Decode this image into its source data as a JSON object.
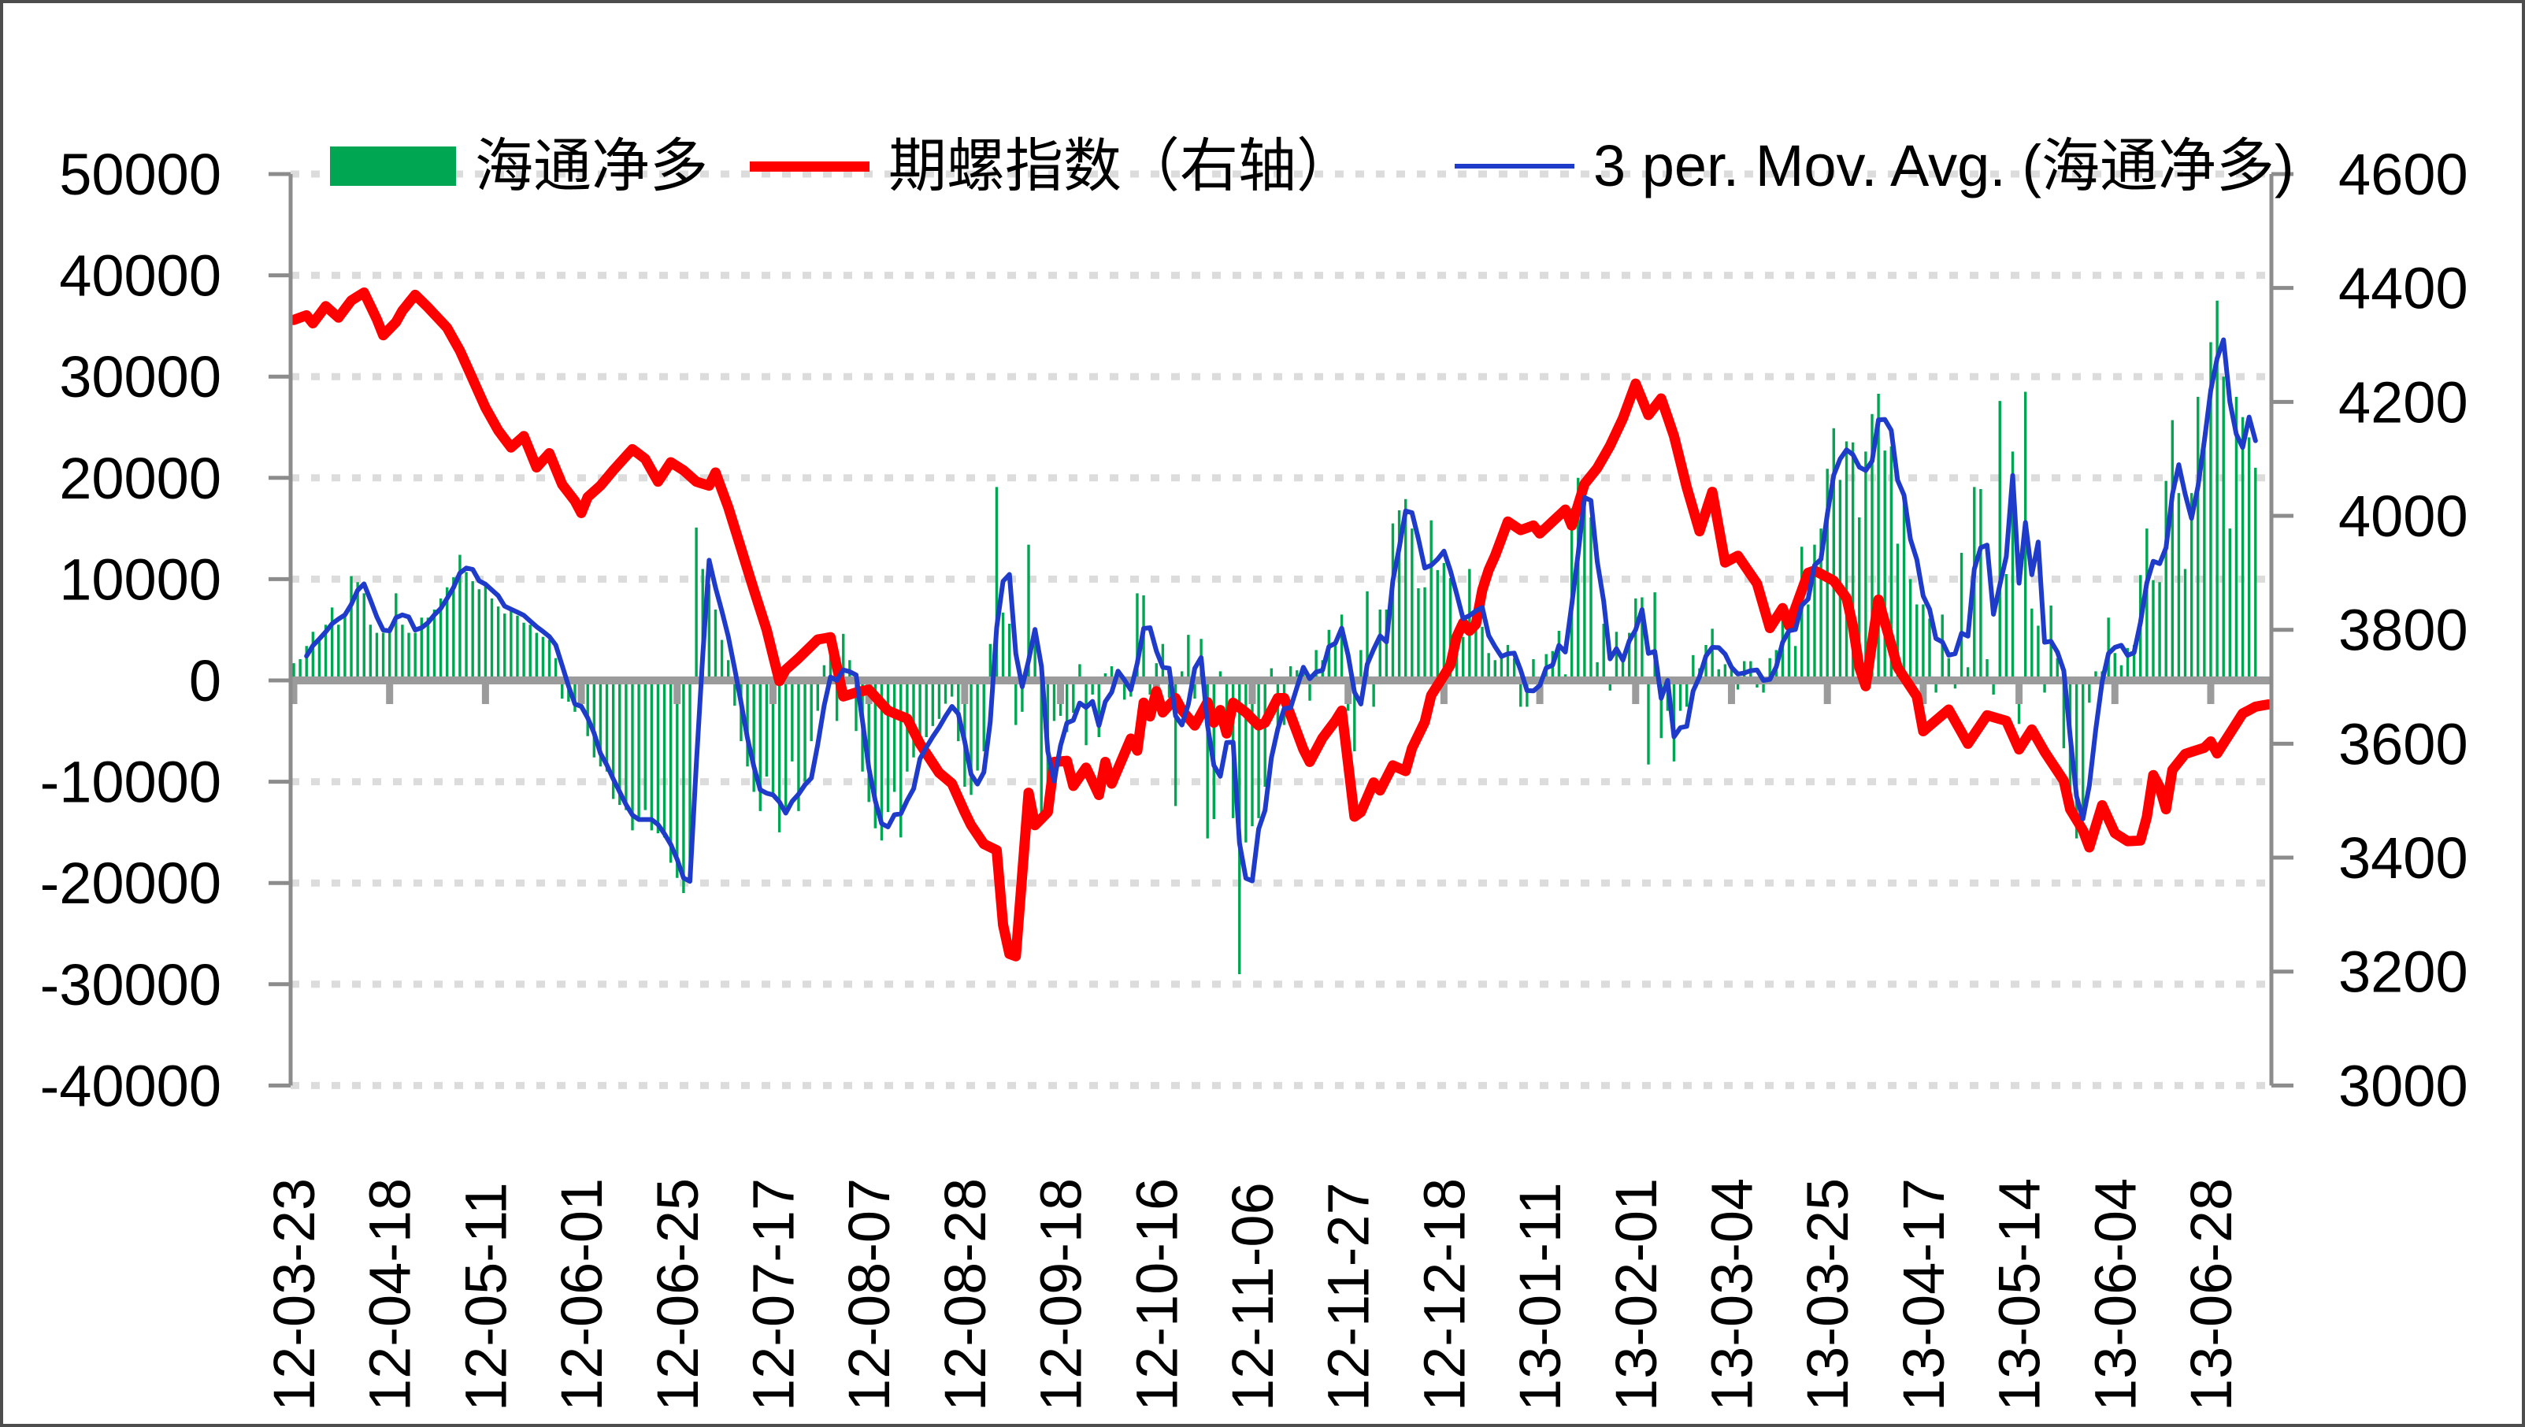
{
  "legend": [
    {
      "id": "bar",
      "label": "海通净多",
      "color": "#00A651",
      "swatch": "rect"
    },
    {
      "id": "red",
      "label": "期螺指数（右轴）",
      "color": "#FF0000",
      "swatch": "thick-line"
    },
    {
      "id": "ma",
      "label": "3 per. Mov. Avg. (海通净多)",
      "color": "#1F3BC9",
      "swatch": "thin-line"
    }
  ],
  "colors": {
    "bar": "#00A651",
    "red_line": "#FF0000",
    "ma_line": "#1F3BC9",
    "axis": "#8C8C8C",
    "zero_line": "#9B9B9B",
    "gridline": "#DCDCDC",
    "text": "#000000",
    "border": "#4D4D4D"
  },
  "chart_data": {
    "type": "combo",
    "title": "",
    "grid": "horizontal-dotted",
    "legend_position": "top",
    "left_axis": {
      "min": -40000,
      "max": 50000,
      "tick_step": 10000,
      "tick_labels": [
        "50000",
        "40000",
        "30000",
        "20000",
        "10000",
        "0",
        "-10000",
        "-20000",
        "-30000",
        "-40000"
      ]
    },
    "right_axis": {
      "min": 3000,
      "max": 4600,
      "tick_step": 200,
      "tick_labels": [
        "4600",
        "4400",
        "4200",
        "4000",
        "3800",
        "3600",
        "3400",
        "3200",
        "3000"
      ]
    },
    "x_tick_labels": [
      "12-03-23",
      "12-04-18",
      "12-05-11",
      "12-06-01",
      "12-06-25",
      "12-07-17",
      "12-08-07",
      "12-08-28",
      "12-09-18",
      "12-10-16",
      "12-11-06",
      "12-11-27",
      "12-12-18",
      "13-01-11",
      "13-02-01",
      "13-03-04",
      "13-03-25",
      "13-04-17",
      "13-05-14",
      "13-06-04",
      "13-06-28"
    ],
    "x_label_every": 15,
    "n_points": 310,
    "series": [
      {
        "name": "海通净多",
        "type": "bar",
        "axis": "left",
        "color": "#00A651",
        "values": [
          1700,
          2100,
          3400,
          4800,
          4100,
          5500,
          7200,
          5500,
          6700,
          10300,
          9700,
          8600,
          5500,
          4700,
          4700,
          5300,
          8600,
          5500,
          4700,
          4700,
          6200,
          6200,
          7000,
          8100,
          9200,
          10200,
          12400,
          10700,
          9800,
          9000,
          9700,
          8100,
          7300,
          6600,
          7200,
          6400,
          5700,
          5500,
          4700,
          4300,
          4000,
          2200,
          -1800,
          -2100,
          -3100,
          -2500,
          -5500,
          -7600,
          -8500,
          -9000,
          -11700,
          -12300,
          -12800,
          -14800,
          -13600,
          -12800,
          -14800,
          -15100,
          -15500,
          -18000,
          -19500,
          -21000,
          -19000,
          15100,
          11000,
          9500,
          7000,
          4000,
          2000,
          -2500,
          -6000,
          -8500,
          -11000,
          -12900,
          -9500,
          -11500,
          -15000,
          -12800,
          -8000,
          -12900,
          -10000,
          -6000,
          -3000,
          1500,
          2500,
          -4000,
          4600,
          2000,
          -5000,
          -9000,
          -12000,
          -14600,
          -15800,
          -13000,
          -11000,
          -15500,
          -9000,
          -7600,
          -6600,
          -5600,
          -4500,
          -3800,
          -2300,
          -1600,
          -6000,
          -10500,
          -11300,
          -8900,
          -7000,
          3600,
          19100,
          6700,
          5600,
          -4400,
          -3100,
          13400,
          4800,
          -14000,
          -11800,
          -4000,
          -3500,
          -5100,
          -3200,
          1600,
          -6400,
          -1400,
          -5600,
          700,
          1400,
          650,
          -1900,
          -1600,
          8600,
          8400,
          -1400,
          1700,
          3600,
          -1700,
          -12400,
          900,
          4500,
          -1800,
          4100,
          -15600,
          -13700,
          900,
          -5600,
          -13600,
          -29000,
          -16000,
          -14400,
          -13600,
          -10500,
          1200,
          -5100,
          -4400,
          1400,
          1000,
          1500,
          -2000,
          3000,
          2000,
          5000,
          4000,
          6500,
          -3000,
          -7000,
          3000,
          8800,
          -2600,
          7000,
          7000,
          15500,
          16800,
          17900,
          15000,
          9100,
          9200,
          15800,
          10900,
          11600,
          10100,
          3900,
          4300,
          11000,
          5300,
          5300,
          2700,
          2000,
          2400,
          3500,
          2200,
          -2600,
          -2600,
          2100,
          -1000,
          2600,
          2900,
          4900,
          600,
          17000,
          20000,
          17200,
          16100,
          1800,
          5600,
          -1000,
          4800,
          2200,
          4700,
          8100,
          8200,
          -8300,
          8700,
          -5700,
          -3000,
          -8000,
          -3000,
          -2600,
          2500,
          1200,
          3500,
          5100,
          1100,
          1600,
          1200,
          -900,
          1900,
          1900,
          -700,
          -1200,
          2200,
          3000,
          6100,
          5600,
          3400,
          13200,
          7500,
          13400,
          15000,
          20900,
          24900,
          19800,
          23600,
          23500,
          16100,
          22600,
          26300,
          28300,
          22700,
          23100,
          13500,
          18300,
          10000,
          7500,
          7500,
          6100,
          -1200,
          6500,
          2200,
          -800,
          12600,
          1300,
          19100,
          18900,
          2100,
          -1400,
          27600,
          10500,
          22600,
          -4300,
          28500,
          7100,
          5400,
          -1200,
          7400,
          2200,
          -6700,
          -12000,
          -15600,
          -13400,
          -2200,
          900,
          900,
          6200,
          2700,
          1500,
          3200,
          3500,
          10400,
          15000,
          9900,
          9700,
          19700,
          25700,
          18500,
          11000,
          18500,
          28000,
          24500,
          33400,
          37500,
          30000,
          15000,
          28000,
          26000,
          24000,
          21000
        ]
      },
      {
        "name": "期螺指数（右轴）",
        "type": "line",
        "axis": "right",
        "color": "#FF0000",
        "stroke": 13,
        "anchors": [
          [
            0,
            4344
          ],
          [
            2,
            4352
          ],
          [
            3,
            4338
          ],
          [
            5,
            4368
          ],
          [
            7,
            4348
          ],
          [
            9,
            4378
          ],
          [
            11,
            4392
          ],
          [
            13,
            4345
          ],
          [
            14,
            4317
          ],
          [
            16,
            4340
          ],
          [
            17,
            4360
          ],
          [
            19,
            4388
          ],
          [
            21,
            4366
          ],
          [
            24,
            4330
          ],
          [
            26,
            4290
          ],
          [
            28,
            4240
          ],
          [
            30,
            4190
          ],
          [
            32,
            4150
          ],
          [
            34,
            4120
          ],
          [
            36,
            4140
          ],
          [
            38,
            4085
          ],
          [
            40,
            4110
          ],
          [
            42,
            4055
          ],
          [
            44,
            4026
          ],
          [
            45,
            4005
          ],
          [
            46,
            4033
          ],
          [
            48,
            4053
          ],
          [
            50,
            4080
          ],
          [
            53,
            4117
          ],
          [
            55,
            4100
          ],
          [
            57,
            4060
          ],
          [
            59,
            4094
          ],
          [
            61,
            4080
          ],
          [
            63,
            4060
          ],
          [
            65,
            4053
          ],
          [
            66,
            4076
          ],
          [
            68,
            4015
          ],
          [
            70,
            3943
          ],
          [
            72,
            3870
          ],
          [
            74,
            3800
          ],
          [
            76,
            3710
          ],
          [
            77,
            3730
          ],
          [
            79,
            3750
          ],
          [
            82,
            3783
          ],
          [
            84,
            3787
          ],
          [
            86,
            3683
          ],
          [
            88,
            3690
          ],
          [
            90,
            3695
          ],
          [
            93,
            3658
          ],
          [
            96,
            3644
          ],
          [
            98,
            3600
          ],
          [
            101,
            3549
          ],
          [
            103,
            3530
          ],
          [
            105,
            3480
          ],
          [
            106,
            3457
          ],
          [
            108,
            3424
          ],
          [
            110,
            3413
          ],
          [
            111,
            3282
          ],
          [
            112,
            3231
          ],
          [
            113,
            3227
          ],
          [
            115,
            3514
          ],
          [
            116,
            3457
          ],
          [
            118,
            3480
          ],
          [
            119,
            3568
          ],
          [
            121,
            3570
          ],
          [
            122,
            3526
          ],
          [
            124,
            3558
          ],
          [
            126,
            3510
          ],
          [
            127,
            3568
          ],
          [
            128,
            3530
          ],
          [
            131,
            3609
          ],
          [
            132,
            3588
          ],
          [
            133,
            3672
          ],
          [
            134,
            3648
          ],
          [
            135,
            3692
          ],
          [
            136,
            3655
          ],
          [
            138,
            3680
          ],
          [
            139,
            3659
          ],
          [
            141,
            3632
          ],
          [
            143,
            3673
          ],
          [
            144,
            3637
          ],
          [
            145,
            3659
          ],
          [
            146,
            3618
          ],
          [
            147,
            3672
          ],
          [
            149,
            3655
          ],
          [
            151,
            3632
          ],
          [
            152,
            3637
          ],
          [
            154,
            3680
          ],
          [
            155,
            3680
          ],
          [
            158,
            3590
          ],
          [
            159,
            3568
          ],
          [
            161,
            3610
          ],
          [
            163,
            3640
          ],
          [
            164,
            3658
          ],
          [
            166,
            3472
          ],
          [
            167,
            3480
          ],
          [
            169,
            3532
          ],
          [
            170,
            3518
          ],
          [
            172,
            3562
          ],
          [
            174,
            3552
          ],
          [
            175,
            3592
          ],
          [
            177,
            3638
          ],
          [
            178,
            3685
          ],
          [
            180,
            3720
          ],
          [
            181,
            3738
          ],
          [
            182,
            3788
          ],
          [
            183,
            3812
          ],
          [
            184,
            3798
          ],
          [
            185,
            3810
          ],
          [
            186,
            3870
          ],
          [
            187,
            3905
          ],
          [
            188,
            3930
          ],
          [
            190,
            3990
          ],
          [
            192,
            3975
          ],
          [
            194,
            3983
          ],
          [
            195,
            3969
          ],
          [
            197,
            3990
          ],
          [
            199,
            4011
          ],
          [
            200,
            3983
          ],
          [
            202,
            4056
          ],
          [
            204,
            4084
          ],
          [
            206,
            4123
          ],
          [
            208,
            4171
          ],
          [
            210,
            4232
          ],
          [
            212,
            4177
          ],
          [
            214,
            4206
          ],
          [
            216,
            4140
          ],
          [
            218,
            4050
          ],
          [
            220,
            3973
          ],
          [
            222,
            4042
          ],
          [
            224,
            3918
          ],
          [
            226,
            3930
          ],
          [
            229,
            3881
          ],
          [
            231,
            3803
          ],
          [
            233,
            3838
          ],
          [
            234,
            3807
          ],
          [
            237,
            3900
          ],
          [
            238,
            3904
          ],
          [
            241,
            3886
          ],
          [
            243,
            3856
          ],
          [
            244,
            3807
          ],
          [
            245,
            3734
          ],
          [
            246,
            3701
          ],
          [
            248,
            3853
          ],
          [
            251,
            3734
          ],
          [
            254,
            3683
          ],
          [
            255,
            3622
          ],
          [
            259,
            3660
          ],
          [
            262,
            3600
          ],
          [
            265,
            3650
          ],
          [
            268,
            3640
          ],
          [
            270,
            3590
          ],
          [
            272,
            3625
          ],
          [
            274,
            3586
          ],
          [
            277,
            3535
          ],
          [
            278,
            3485
          ],
          [
            280,
            3448
          ],
          [
            281,
            3418
          ],
          [
            283,
            3492
          ],
          [
            285,
            3443
          ],
          [
            287,
            3429
          ],
          [
            289,
            3430
          ],
          [
            290,
            3471
          ],
          [
            291,
            3545
          ],
          [
            292,
            3524
          ],
          [
            293,
            3485
          ],
          [
            294,
            3554
          ],
          [
            296,
            3582
          ],
          [
            299,
            3593
          ],
          [
            300,
            3604
          ],
          [
            301,
            3583
          ],
          [
            303,
            3618
          ],
          [
            305,
            3653
          ],
          [
            307,
            3665
          ],
          [
            309,
            3669
          ]
        ]
      },
      {
        "name": "3 per. Mov. Avg. (海通净多)",
        "type": "line",
        "axis": "left",
        "color": "#1F3BC9",
        "stroke": 6,
        "derived": "3_period_moving_average_of_bar_series"
      }
    ]
  }
}
